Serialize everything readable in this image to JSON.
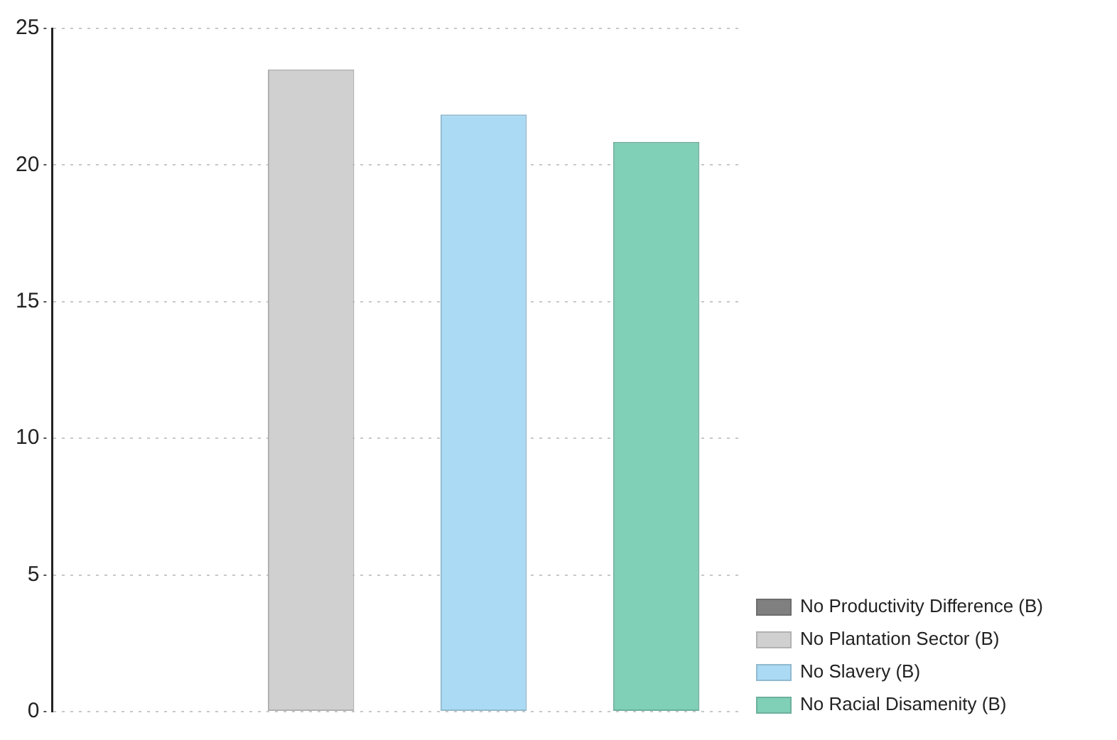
{
  "chart_data": {
    "type": "bar",
    "categories": [
      null,
      null,
      null,
      null
    ],
    "series": [
      {
        "name": "No Productivity Difference (B)",
        "color": "#808080",
        "values": [
          0,
          null,
          null,
          null
        ]
      },
      {
        "name": "No Plantation Sector (B)",
        "color": "#d0d0d0",
        "values": [
          null,
          23.5,
          null,
          null
        ]
      },
      {
        "name": "No Slavery (B)",
        "color": "#abdaf4",
        "values": [
          null,
          null,
          21.85,
          null
        ]
      },
      {
        "name": "No Racial Disamenity (B)",
        "color": "#80cfb7",
        "values": [
          null,
          null,
          null,
          20.85
        ]
      }
    ],
    "ylim": [
      0,
      25
    ],
    "yticks": [
      0,
      5,
      10,
      15,
      20,
      25
    ],
    "grid": "y",
    "legend": "bottom right"
  }
}
